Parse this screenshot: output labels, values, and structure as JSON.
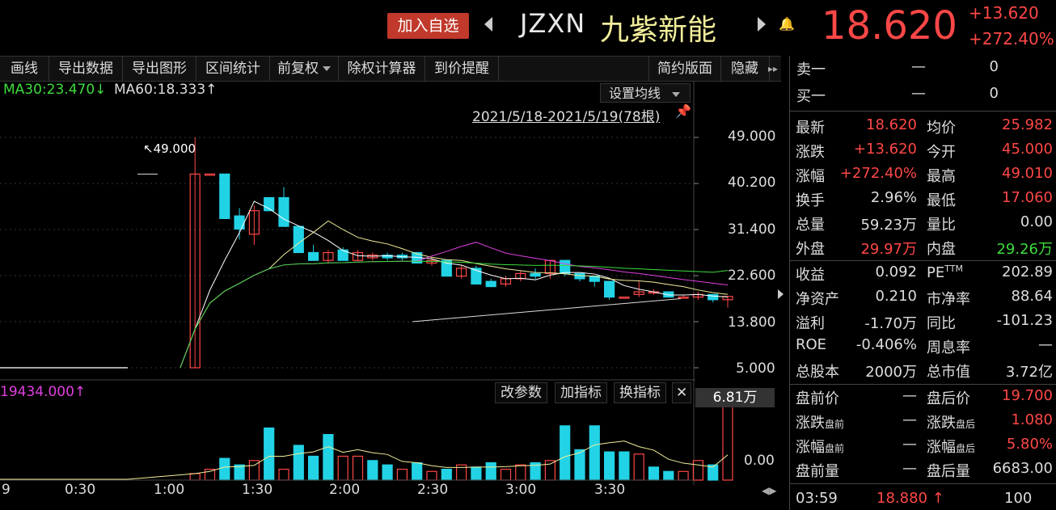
{
  "header": {
    "add_watch": "加入自选",
    "ticker": "JZXN",
    "name": "九紫新能",
    "price": "18.620",
    "change": "+13.620",
    "change_pct": "+272.40%"
  },
  "toolbar": {
    "items": [
      "画线",
      "导出数据",
      "导出图形",
      "区间统计",
      "前复权",
      "除权计算器",
      "到价提醒"
    ],
    "simple_layout": "简约版面",
    "hide": "隐藏"
  },
  "chart": {
    "ma30": "MA30:23.470↓",
    "ma60": "MA60:18.333↑",
    "set_ma": "设置均线",
    "date_range": "2021/5/18-2021/5/19(78根)",
    "peak_label": "↖49.000",
    "y_labels": [
      "49.000",
      "40.200",
      "31.400",
      "22.600",
      "13.800",
      "5.000"
    ],
    "sub_title": "19434.000↑",
    "sub_buttons": [
      "改参数",
      "加指标",
      "换指标"
    ],
    "vol_badge": "6.81万",
    "sub_y_label": "0.00",
    "x_labels": [
      "9",
      "0:30",
      "1:00",
      "1:30",
      "2:00",
      "2:30",
      "3:00",
      "3:30"
    ],
    "colors": {
      "up": "#ff4747",
      "down": "#22d3e6",
      "ma5": "#ffffff",
      "ma10": "#f2ee9a",
      "ma30": "#e040e0",
      "ma60": "#3ddc3d"
    }
  },
  "chart_data": {
    "type": "candlestick",
    "ylim": [
      5.0,
      49.0
    ],
    "candles": [
      {
        "o": 5.0,
        "h": 5.0,
        "l": 5.0,
        "c": 5.0
      },
      {
        "o": 5.0,
        "h": 5.0,
        "l": 5.0,
        "c": 5.0
      },
      {
        "o": 5.0,
        "h": 5.0,
        "l": 5.0,
        "c": 5.0
      },
      {
        "o": 5.0,
        "h": 5.0,
        "l": 5.0,
        "c": 5.0
      },
      {
        "o": 5.0,
        "h": 49.0,
        "l": 5.0,
        "c": 42.0
      },
      {
        "o": 42.0,
        "h": 42.0,
        "l": 42.0,
        "c": 42.0
      },
      {
        "o": 42.0,
        "h": 42.0,
        "l": 33.5,
        "c": 33.5
      },
      {
        "o": 34.0,
        "h": 35.5,
        "l": 29.5,
        "c": 31.5
      },
      {
        "o": 30.5,
        "h": 36.0,
        "l": 28.5,
        "c": 35.0
      },
      {
        "o": 37.5,
        "h": 37.5,
        "l": 35.0,
        "c": 35.0
      },
      {
        "o": 37.5,
        "h": 39.5,
        "l": 32.0,
        "c": 32.0
      },
      {
        "o": 32.0,
        "h": 32.0,
        "l": 27.0,
        "c": 27.0
      },
      {
        "o": 27.0,
        "h": 28.5,
        "l": 25.5,
        "c": 25.5
      },
      {
        "o": 25.5,
        "h": 27.5,
        "l": 25.0,
        "c": 27.0
      },
      {
        "o": 27.5,
        "h": 28.0,
        "l": 25.5,
        "c": 25.5
      },
      {
        "o": 25.5,
        "h": 27.5,
        "l": 25.5,
        "c": 27.0
      },
      {
        "o": 26.0,
        "h": 27.0,
        "l": 25.5,
        "c": 26.5
      },
      {
        "o": 26.5,
        "h": 27.0,
        "l": 25.5,
        "c": 26.0
      },
      {
        "o": 26.5,
        "h": 27.0,
        "l": 25.5,
        "c": 26.0
      },
      {
        "o": 27.0,
        "h": 27.0,
        "l": 25.0,
        "c": 25.0
      },
      {
        "o": 25.0,
        "h": 26.0,
        "l": 24.5,
        "c": 25.5
      },
      {
        "o": 25.5,
        "h": 25.5,
        "l": 22.5,
        "c": 22.5
      },
      {
        "o": 22.5,
        "h": 24.5,
        "l": 22.0,
        "c": 24.0
      },
      {
        "o": 24.0,
        "h": 24.5,
        "l": 21.0,
        "c": 21.0
      },
      {
        "o": 21.5,
        "h": 22.0,
        "l": 20.5,
        "c": 20.5
      },
      {
        "o": 21.0,
        "h": 22.5,
        "l": 20.5,
        "c": 22.0
      },
      {
        "o": 22.0,
        "h": 23.5,
        "l": 21.5,
        "c": 23.0
      },
      {
        "o": 23.0,
        "h": 24.0,
        "l": 22.0,
        "c": 22.5
      },
      {
        "o": 23.0,
        "h": 25.5,
        "l": 22.0,
        "c": 25.5
      },
      {
        "o": 25.5,
        "h": 25.5,
        "l": 22.5,
        "c": 23.0
      },
      {
        "o": 23.0,
        "h": 23.0,
        "l": 21.5,
        "c": 22.0
      },
      {
        "o": 22.5,
        "h": 22.5,
        "l": 20.5,
        "c": 21.5
      },
      {
        "o": 21.5,
        "h": 21.5,
        "l": 18.0,
        "c": 18.5
      },
      {
        "o": 18.5,
        "h": 18.5,
        "l": 18.5,
        "c": 18.5
      },
      {
        "o": 19.0,
        "h": 21.5,
        "l": 18.5,
        "c": 19.5
      },
      {
        "o": 19.5,
        "h": 20.0,
        "l": 19.0,
        "c": 19.5
      },
      {
        "o": 19.5,
        "h": 19.5,
        "l": 18.5,
        "c": 18.5
      },
      {
        "o": 18.5,
        "h": 19.0,
        "l": 18.5,
        "c": 18.5
      },
      {
        "o": 18.5,
        "h": 19.5,
        "l": 18.0,
        "c": 19.0
      },
      {
        "o": 19.0,
        "h": 19.0,
        "l": 17.5,
        "c": 18.0
      },
      {
        "o": 18.0,
        "h": 18.5,
        "l": 16.5,
        "c": 18.62
      }
    ],
    "volume": [
      0,
      0,
      0,
      0,
      0.6,
      1.0,
      2.0,
      1.4,
      1.8,
      4.8,
      1.0,
      3.2,
      2.2,
      4.2,
      2.2,
      2.2,
      1.8,
      1.4,
      1.0,
      1.6,
      0.8,
      1.0,
      1.4,
      1.2,
      1.6,
      1.0,
      1.4,
      1.6,
      1.8,
      5.0,
      2.8,
      5.0,
      2.6,
      2.6,
      2.4,
      1.2,
      0.8,
      0.8,
      1.8,
      1.4,
      6.81
    ],
    "volume_up": [
      false,
      false,
      false,
      false,
      true,
      true,
      false,
      false,
      true,
      false,
      true,
      false,
      false,
      false,
      true,
      true,
      false,
      false,
      true,
      false,
      true,
      false,
      true,
      false,
      false,
      true,
      true,
      false,
      true,
      false,
      false,
      false,
      false,
      false,
      true,
      false,
      false,
      true,
      true,
      false,
      true
    ]
  },
  "panel": {
    "ask_label": "卖一",
    "ask_price": "—",
    "ask_vol": "0",
    "bid_label": "买一",
    "bid_price": "—",
    "bid_vol": "0",
    "latest_l": "最新",
    "latest_v": "18.620",
    "avg_l": "均价",
    "avg_v": "25.982",
    "chg_l": "涨跌",
    "chg_v": "+13.620",
    "open_l": "今开",
    "open_v": "45.000",
    "pct_l": "涨幅",
    "pct_v": "+272.40%",
    "high_l": "最高",
    "high_v": "49.010",
    "turn_l": "换手",
    "turn_v": "2.96%",
    "low_l": "最低",
    "low_v": "17.060",
    "vol_l": "总量",
    "vol_v": "59.23万",
    "ratio_l": "量比",
    "ratio_v": "0.00",
    "out_l": "外盘",
    "out_v": "29.97万",
    "in_l": "内盘",
    "in_v": "29.26万",
    "eps_l": "收益",
    "eps_v": "0.092",
    "pe_l": "PE",
    "pe_sup": "TTM",
    "pe_v": "202.89",
    "nav_l": "净资产",
    "nav_v": "0.210",
    "pb_l": "市净率",
    "pb_v": "88.64",
    "profit_l": "溢利",
    "profit_v": "-1.70万",
    "yoy_l": "同比",
    "yoy_v": "-101.23",
    "roe_l": "ROE",
    "roe_v": "-0.406%",
    "wk_l": "周息率",
    "wk_v": "—",
    "shares_l": "总股本",
    "shares_v": "2000万",
    "mcap_l": "总市值",
    "mcap_v": "3.72亿",
    "pre_l": "盘前价",
    "pre_v": "—",
    "post_l": "盘后价",
    "post_v": "19.700",
    "prechg_l": "涨跌",
    "prechg_sub": "盘前",
    "prechg_v": "—",
    "postchg_l": "涨跌",
    "postchg_sub": "盘后",
    "postchg_v": "1.080",
    "prepct_l": "涨幅",
    "prepct_sub": "盘前",
    "prepct_v": "—",
    "postpct_l": "涨幅",
    "postpct_sub": "盘后",
    "postpct_v": "5.80%",
    "prevol_l": "盘前量",
    "prevol_v": "—",
    "postvol_l": "盘后量",
    "postvol_v": "6683.00",
    "tick_time": "03:59",
    "tick_price": "18.880 ↑",
    "tick_vol": "100"
  }
}
